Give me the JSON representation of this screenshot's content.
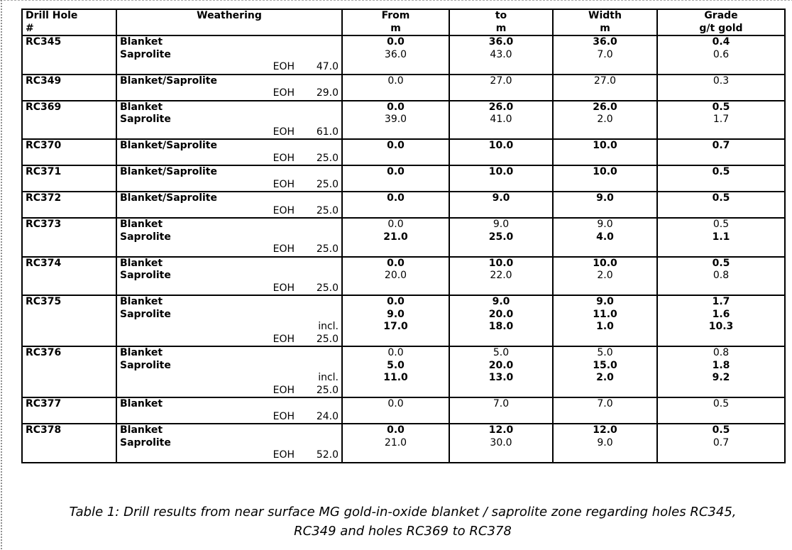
{
  "table": {
    "eoh_label": "EOH",
    "headers": [
      {
        "l1": "Drill Hole",
        "l2": "#"
      },
      {
        "l1": "Weathering",
        "l2": ""
      },
      {
        "l1": "From",
        "l2": "m"
      },
      {
        "l1": "to",
        "l2": "m"
      },
      {
        "l1": "Width",
        "l2": "m"
      },
      {
        "l1": "Grade",
        "l2": "g/t gold"
      }
    ],
    "rows": [
      {
        "hole": "RC345",
        "lines": [
          {
            "zone": "Blanket",
            "from": "0.0",
            "to": "36.0",
            "width": "36.0",
            "grade": "0.4",
            "bold": true
          },
          {
            "zone": "Saprolite",
            "from": "36.0",
            "to": "43.0",
            "width": "7.0",
            "grade": "0.6",
            "bold": false
          }
        ],
        "eoh": "47.0"
      },
      {
        "hole": "RC349",
        "lines": [
          {
            "zone": "Blanket/Saprolite",
            "from": "0.0",
            "to": "27.0",
            "width": "27.0",
            "grade": "0.3",
            "bold": false
          }
        ],
        "eoh": "29.0"
      },
      {
        "hole": "RC369",
        "lines": [
          {
            "zone": "Blanket",
            "from": "0.0",
            "to": "26.0",
            "width": "26.0",
            "grade": "0.5",
            "bold": true
          },
          {
            "zone": "Saprolite",
            "from": "39.0",
            "to": "41.0",
            "width": "2.0",
            "grade": "1.7",
            "bold": false
          }
        ],
        "eoh": "61.0"
      },
      {
        "hole": "RC370",
        "lines": [
          {
            "zone": "Blanket/Saprolite",
            "from": "0.0",
            "to": "10.0",
            "width": "10.0",
            "grade": "0.7",
            "bold": true
          }
        ],
        "eoh": "25.0"
      },
      {
        "hole": "RC371",
        "lines": [
          {
            "zone": "Blanket/Saprolite",
            "from": "0.0",
            "to": "10.0",
            "width": "10.0",
            "grade": "0.5",
            "bold": true
          }
        ],
        "eoh": "25.0"
      },
      {
        "hole": "RC372",
        "lines": [
          {
            "zone": "Blanket/Saprolite",
            "from": "0.0",
            "to": "9.0",
            "width": "9.0",
            "grade": "0.5",
            "bold": true
          }
        ],
        "eoh": "25.0"
      },
      {
        "hole": "RC373",
        "lines": [
          {
            "zone": "Blanket",
            "from": "0.0",
            "to": "9.0",
            "width": "9.0",
            "grade": "0.5",
            "bold": false
          },
          {
            "zone": "Saprolite",
            "from": "21.0",
            "to": "25.0",
            "width": "4.0",
            "grade": "1.1",
            "bold": true
          }
        ],
        "eoh": "25.0"
      },
      {
        "hole": "RC374",
        "lines": [
          {
            "zone": "Blanket",
            "from": "0.0",
            "to": "10.0",
            "width": "10.0",
            "grade": "0.5",
            "bold": true
          },
          {
            "zone": "Saprolite",
            "from": "20.0",
            "to": "22.0",
            "width": "2.0",
            "grade": "0.8",
            "bold": false
          }
        ],
        "eoh": "25.0"
      },
      {
        "hole": "RC375",
        "lines": [
          {
            "zone": "Blanket",
            "from": "0.0",
            "to": "9.0",
            "width": "9.0",
            "grade": "1.7",
            "bold": true
          },
          {
            "zone": "Saprolite",
            "from": "9.0",
            "to": "20.0",
            "width": "11.0",
            "grade": "1.6",
            "bold": true
          },
          {
            "zone": "incl.",
            "from": "17.0",
            "to": "18.0",
            "width": "1.0",
            "grade": "10.3",
            "bold": true
          }
        ],
        "eoh": "25.0"
      },
      {
        "hole": "RC376",
        "lines": [
          {
            "zone": "Blanket",
            "from": "0.0",
            "to": "5.0",
            "width": "5.0",
            "grade": "0.8",
            "bold": false
          },
          {
            "zone": "Saprolite",
            "from": "5.0",
            "to": "20.0",
            "width": "15.0",
            "grade": "1.8",
            "bold": true
          },
          {
            "zone": "incl.",
            "from": "11.0",
            "to": "13.0",
            "width": "2.0",
            "grade": "9.2",
            "bold": true
          }
        ],
        "eoh": "25.0"
      },
      {
        "hole": "RC377",
        "lines": [
          {
            "zone": "Blanket",
            "from": "0.0",
            "to": "7.0",
            "width": "7.0",
            "grade": "0.5",
            "bold": false
          }
        ],
        "eoh": "24.0"
      },
      {
        "hole": "RC378",
        "lines": [
          {
            "zone": "Blanket",
            "from": "0.0",
            "to": "12.0",
            "width": "12.0",
            "grade": "0.5",
            "bold": true
          },
          {
            "zone": "Saprolite",
            "from": "21.0",
            "to": "30.0",
            "width": "9.0",
            "grade": "0.7",
            "bold": false
          }
        ],
        "eoh": "52.0"
      }
    ]
  },
  "caption": {
    "line1": "Table 1: Drill results from near surface MG gold-in-oxide blanket / saprolite zone regarding holes RC345,",
    "line2": "RC349 and holes RC369 to RC378"
  }
}
